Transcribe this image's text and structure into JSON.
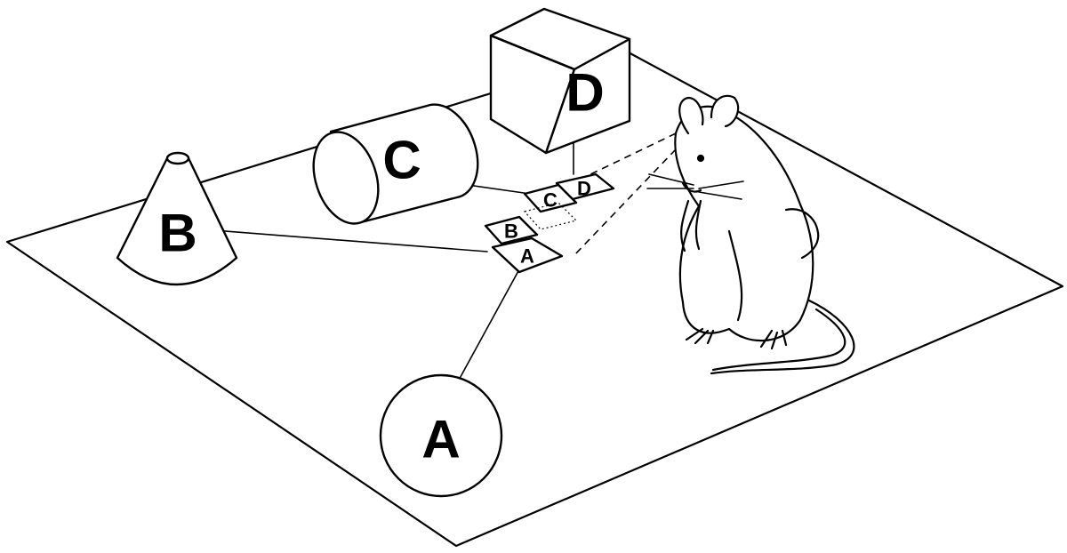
{
  "objects": {
    "A": {
      "label": "A",
      "shape": "circle"
    },
    "B": {
      "label": "B",
      "shape": "cone"
    },
    "C": {
      "label": "C",
      "shape": "cylinder"
    },
    "D": {
      "label": "D",
      "shape": "cube"
    }
  },
  "memory_cards": [
    "A",
    "B",
    "C",
    "D"
  ],
  "colors": {
    "ink": "#000000",
    "paper": "#ffffff"
  }
}
